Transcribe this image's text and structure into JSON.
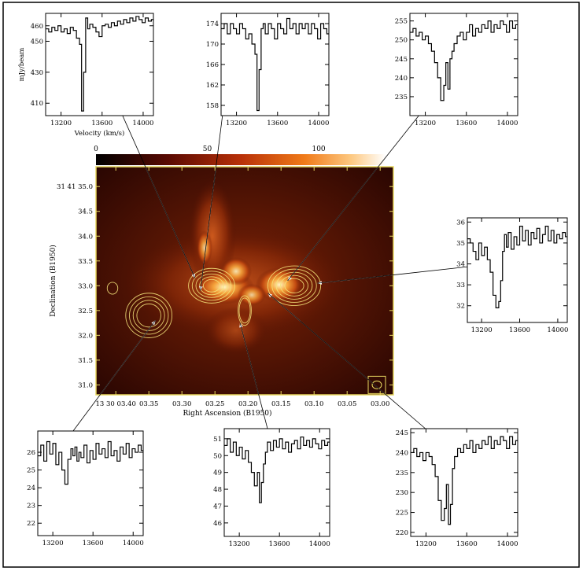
{
  "chart_data": [
    {
      "type": "heatmap",
      "id": "main_map",
      "xlabel": "Right Ascension (B1950)",
      "ylabel": "Declination (B1950)",
      "x_ticks": [
        "13 30 03.40",
        "03.35",
        "03.30",
        "03.25",
        "03.20",
        "03.15",
        "03.10",
        "03.05",
        "03.00"
      ],
      "x_tick_values": [
        3.4,
        3.35,
        3.3,
        3.25,
        3.2,
        3.15,
        3.1,
        3.05,
        3.0
      ],
      "xlim": [
        3.43,
        2.98
      ],
      "y_ticks": [
        "31 41 35.0",
        "34.5",
        "34.0",
        "33.5",
        "33.0",
        "32.5",
        "32.0",
        "31.5",
        "31.0"
      ],
      "y_tick_values": [
        35.0,
        34.5,
        34.0,
        33.5,
        33.0,
        32.5,
        32.0,
        31.5,
        31.0
      ],
      "ylim": [
        30.8,
        35.4
      ],
      "colorbar": {
        "ticks": [
          "0",
          "50",
          "100"
        ],
        "values": [
          0,
          50,
          100
        ],
        "range": [
          0,
          130
        ]
      },
      "colors": {
        "frame": "#e8d860",
        "contour": "#f3e27a",
        "arrow": "#ffffff"
      },
      "contours": [
        {
          "ra": 3.255,
          "dec": 33.0,
          "dra": 0.035,
          "ddec": 0.35,
          "levels": 5
        },
        {
          "ra": 3.13,
          "dec": 33.0,
          "dra": 0.04,
          "ddec": 0.4,
          "levels": 5
        },
        {
          "ra": 3.35,
          "dec": 32.4,
          "dra": 0.035,
          "ddec": 0.45,
          "levels": 4
        },
        {
          "ra": 3.205,
          "dec": 32.5,
          "dra": 0.01,
          "ddec": 0.3,
          "levels": 2
        },
        {
          "ra": 3.405,
          "dec": 32.95,
          "dra": 0.008,
          "ddec": 0.12,
          "levels": 1
        }
      ],
      "beam": {
        "ra": 3.005,
        "dec": 31.0
      }
    },
    {
      "type": "line",
      "id": "spec_tl",
      "xlabel": "Velocity (km/s)",
      "ylabel": "mJy/beam",
      "x_ticks": [
        "13200",
        "13600",
        "14000"
      ],
      "xlim": [
        13050,
        14100
      ],
      "y_ticks": [
        "410",
        "430",
        "450",
        "460"
      ],
      "y_tick_values": [
        410,
        430,
        450,
        460
      ],
      "ylim": [
        402,
        468
      ],
      "x": [
        13050,
        13080,
        13110,
        13140,
        13170,
        13200,
        13230,
        13260,
        13290,
        13320,
        13350,
        13380,
        13400,
        13420,
        13440,
        13460,
        13480,
        13510,
        13540,
        13570,
        13600,
        13630,
        13660,
        13690,
        13720,
        13750,
        13780,
        13810,
        13840,
        13870,
        13900,
        13930,
        13960,
        13990,
        14020,
        14050,
        14080,
        14100
      ],
      "y": [
        458,
        456,
        459,
        457,
        460,
        456,
        458,
        455,
        459,
        457,
        452,
        448,
        405,
        430,
        465,
        458,
        461,
        459,
        456,
        453,
        460,
        461,
        459,
        462,
        460,
        463,
        461,
        464,
        462,
        465,
        463,
        466,
        464,
        462,
        465,
        463,
        464,
        464
      ],
      "pointer": {
        "ra": 3.28,
        "dec": 33.15
      }
    },
    {
      "type": "line",
      "id": "spec_tc",
      "xlabel": "",
      "ylabel": "",
      "x_ticks": [
        "13200",
        "13600",
        "14000"
      ],
      "xlim": [
        13050,
        14100
      ],
      "y_ticks": [
        "158",
        "162",
        "166",
        "170",
        "174"
      ],
      "y_tick_values": [
        158,
        162,
        166,
        170,
        174
      ],
      "ylim": [
        156,
        176
      ],
      "x": [
        13050,
        13080,
        13110,
        13140,
        13170,
        13200,
        13230,
        13260,
        13290,
        13320,
        13350,
        13380,
        13400,
        13420,
        13440,
        13460,
        13480,
        13510,
        13540,
        13570,
        13600,
        13630,
        13660,
        13690,
        13720,
        13750,
        13780,
        13810,
        13840,
        13870,
        13900,
        13930,
        13960,
        13990,
        14020,
        14050,
        14080,
        14100
      ],
      "y": [
        173,
        174,
        172,
        174,
        173,
        172,
        174,
        173,
        171,
        172,
        170,
        168,
        157,
        165,
        173,
        174,
        172,
        174,
        173,
        171,
        174,
        173,
        172,
        175,
        173,
        174,
        172,
        174,
        173,
        174,
        172,
        174,
        173,
        171,
        174,
        173,
        172,
        172
      ],
      "pointer": {
        "ra": 3.272,
        "dec": 32.9
      }
    },
    {
      "type": "line",
      "id": "spec_tr",
      "xlabel": "",
      "ylabel": "",
      "x_ticks": [
        "13200",
        "13600",
        "14000"
      ],
      "xlim": [
        13050,
        14100
      ],
      "y_ticks": [
        "235",
        "240",
        "245",
        "250",
        "255"
      ],
      "y_tick_values": [
        235,
        240,
        245,
        250,
        255
      ],
      "ylim": [
        230,
        257
      ],
      "x": [
        13050,
        13080,
        13110,
        13140,
        13170,
        13200,
        13230,
        13260,
        13290,
        13320,
        13350,
        13380,
        13400,
        13420,
        13440,
        13460,
        13480,
        13510,
        13540,
        13570,
        13600,
        13630,
        13660,
        13690,
        13720,
        13750,
        13780,
        13810,
        13840,
        13870,
        13900,
        13930,
        13960,
        13990,
        14020,
        14050,
        14080,
        14100
      ],
      "y": [
        252,
        253,
        251,
        252,
        250,
        251,
        249,
        247,
        244,
        240,
        234,
        238,
        244,
        237,
        245,
        247,
        249,
        251,
        252,
        250,
        252,
        254,
        251,
        253,
        252,
        254,
        253,
        255,
        252,
        254,
        253,
        255,
        254,
        252,
        255,
        253,
        254,
        254
      ],
      "pointer": {
        "ra": 3.14,
        "dec": 33.1
      }
    },
    {
      "type": "line",
      "id": "spec_r",
      "xlabel": "",
      "ylabel": "",
      "x_ticks": [
        "13200",
        "13600",
        "14000"
      ],
      "xlim": [
        13050,
        14100
      ],
      "y_ticks": [
        "32",
        "33",
        "34",
        "35",
        "36"
      ],
      "y_tick_values": [
        32,
        33,
        34,
        35,
        36
      ],
      "ylim": [
        31.2,
        36.2
      ],
      "x": [
        13050,
        13080,
        13110,
        13140,
        13170,
        13200,
        13230,
        13260,
        13290,
        13320,
        13350,
        13380,
        13400,
        13420,
        13440,
        13460,
        13480,
        13510,
        13540,
        13570,
        13600,
        13630,
        13660,
        13690,
        13720,
        13750,
        13780,
        13810,
        13840,
        13870,
        13900,
        13930,
        13960,
        13990,
        14020,
        14050,
        14080,
        14100
      ],
      "y": [
        35.2,
        35.0,
        34.6,
        34.2,
        35.0,
        34.4,
        34.8,
        34.2,
        33.6,
        32.5,
        31.9,
        32.2,
        33.2,
        34.6,
        35.4,
        34.8,
        35.5,
        34.7,
        35.3,
        34.9,
        35.8,
        35.1,
        35.6,
        34.9,
        35.5,
        35.2,
        35.7,
        35.0,
        35.4,
        35.8,
        35.1,
        35.6,
        35.0,
        35.4,
        35.2,
        35.5,
        35.3,
        35.3
      ],
      "pointer": {
        "ra": 3.095,
        "dec": 33.05
      }
    },
    {
      "type": "line",
      "id": "spec_bl",
      "xlabel": "",
      "ylabel": "",
      "x_ticks": [
        "13200",
        "13600",
        "14000"
      ],
      "xlim": [
        13050,
        14100
      ],
      "y_ticks": [
        "22",
        "23",
        "24",
        "25",
        "26"
      ],
      "y_tick_values": [
        22,
        23,
        24,
        25,
        26
      ],
      "ylim": [
        21.3,
        27.2
      ],
      "x": [
        13050,
        13080,
        13110,
        13140,
        13170,
        13200,
        13230,
        13260,
        13290,
        13320,
        13350,
        13380,
        13400,
        13420,
        13440,
        13460,
        13480,
        13510,
        13540,
        13570,
        13600,
        13630,
        13660,
        13690,
        13720,
        13750,
        13780,
        13810,
        13840,
        13870,
        13900,
        13930,
        13960,
        13990,
        14020,
        14050,
        14080,
        14100
      ],
      "y": [
        25.8,
        26.4,
        25.5,
        26.6,
        25.9,
        26.5,
        25.3,
        26.0,
        25.0,
        24.2,
        25.6,
        26.2,
        25.8,
        26.3,
        25.5,
        26.0,
        25.7,
        26.4,
        25.4,
        26.1,
        25.6,
        26.5,
        25.9,
        26.2,
        25.7,
        26.6,
        25.8,
        26.1,
        25.5,
        26.3,
        25.9,
        26.5,
        25.7,
        26.2,
        26.0,
        26.4,
        26.1,
        26.1
      ],
      "pointer": {
        "ra": 3.34,
        "dec": 32.3
      }
    },
    {
      "type": "line",
      "id": "spec_bc",
      "xlabel": "",
      "ylabel": "",
      "x_ticks": [
        "13200",
        "13600",
        "14000"
      ],
      "xlim": [
        13050,
        14100
      ],
      "y_ticks": [
        "46",
        "47",
        "48",
        "49",
        "50",
        "51"
      ],
      "y_tick_values": [
        46,
        47,
        48,
        49,
        50,
        51
      ],
      "ylim": [
        45.2,
        51.6
      ],
      "x": [
        13050,
        13080,
        13110,
        13140,
        13170,
        13200,
        13230,
        13260,
        13290,
        13320,
        13350,
        13380,
        13400,
        13420,
        13440,
        13460,
        13480,
        13510,
        13540,
        13570,
        13600,
        13630,
        13660,
        13690,
        13720,
        13750,
        13780,
        13810,
        13840,
        13870,
        13900,
        13930,
        13960,
        13990,
        14020,
        14050,
        14080,
        14100
      ],
      "y": [
        50.6,
        51.0,
        50.2,
        50.8,
        50.0,
        50.5,
        49.8,
        50.3,
        49.6,
        49.0,
        48.2,
        49.0,
        47.2,
        48.4,
        49.5,
        50.2,
        50.8,
        50.3,
        50.9,
        50.5,
        51.0,
        50.4,
        50.8,
        50.2,
        50.7,
        50.9,
        50.4,
        51.1,
        50.6,
        50.9,
        50.5,
        51.0,
        50.7,
        50.4,
        50.9,
        50.6,
        50.8,
        50.8
      ],
      "pointer": {
        "ra": 3.212,
        "dec": 32.25
      }
    },
    {
      "type": "line",
      "id": "spec_br",
      "xlabel": "",
      "ylabel": "",
      "x_ticks": [
        "13200",
        "13600",
        "14000"
      ],
      "xlim": [
        13050,
        14100
      ],
      "y_ticks": [
        "220",
        "225",
        "230",
        "235",
        "240",
        "245"
      ],
      "y_tick_values": [
        220,
        225,
        230,
        235,
        240,
        245
      ],
      "ylim": [
        219,
        246
      ],
      "x": [
        13050,
        13080,
        13110,
        13140,
        13170,
        13200,
        13230,
        13260,
        13290,
        13320,
        13350,
        13380,
        13400,
        13420,
        13440,
        13460,
        13480,
        13510,
        13540,
        13570,
        13600,
        13630,
        13660,
        13690,
        13720,
        13750,
        13780,
        13810,
        13840,
        13870,
        13900,
        13930,
        13960,
        13990,
        14020,
        14050,
        14080,
        14100
      ],
      "y": [
        240,
        241,
        239,
        240,
        238,
        240,
        239,
        237,
        234,
        228,
        223,
        226,
        232,
        222,
        227,
        236,
        239,
        241,
        240,
        242,
        241,
        243,
        240,
        242,
        241,
        243,
        242,
        244,
        241,
        243,
        242,
        244,
        243,
        241,
        244,
        242,
        243,
        243
      ],
      "pointer": {
        "ra": 3.17,
        "dec": 32.85
      }
    }
  ]
}
